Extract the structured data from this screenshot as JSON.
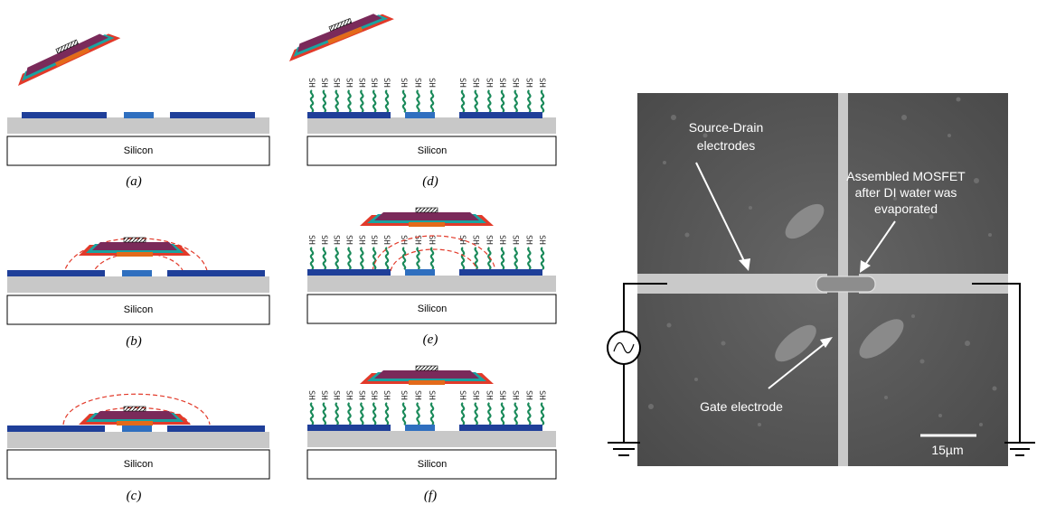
{
  "panels": [
    {
      "id": "a",
      "caption": "(a)",
      "substrate_label": "Silicon"
    },
    {
      "id": "b",
      "caption": "(b)",
      "substrate_label": "Silicon"
    },
    {
      "id": "c",
      "caption": "(c)",
      "substrate_label": "Silicon"
    },
    {
      "id": "d",
      "caption": "(d)",
      "substrate_label": "Silicon",
      "sam_label": "SH"
    },
    {
      "id": "e",
      "caption": "(e)",
      "substrate_label": "Silicon",
      "sam_label": "SH"
    },
    {
      "id": "f",
      "caption": "(f)",
      "substrate_label": "Silicon",
      "sam_label": "SH"
    }
  ],
  "micrograph": {
    "label_source_drain": [
      "Source-Drain",
      "electrodes"
    ],
    "label_mosfet": [
      "Assembled MOSFET",
      "after DI water was",
      "evaporated"
    ],
    "label_gate": "Gate electrode",
    "scale_bar": "15µm"
  },
  "colors": {
    "electrode": "#1f3f99",
    "center_pad": "#2f6fbf",
    "oxide": "#c8c8c8",
    "field_lines": "#e23a2a",
    "sam_chain": "#1a8a5a",
    "chip_body": "#7a2a5a",
    "chip_orange": "#e36a1a",
    "chip_teal": "#1aa3a0",
    "micrograph_bg": "#5a5a5a",
    "micrograph_electrode": "#c9c9c9"
  }
}
